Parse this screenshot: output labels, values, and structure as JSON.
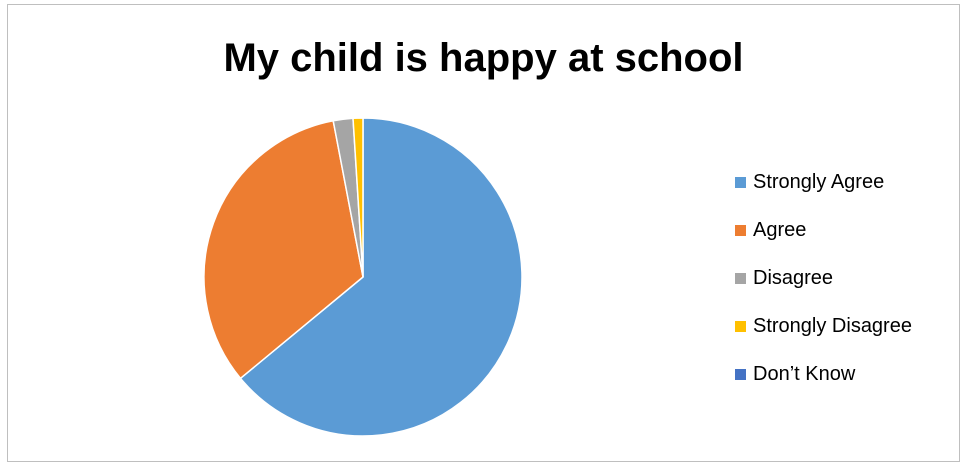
{
  "chart_data": {
    "type": "pie",
    "title": "My child is happy at school",
    "categories": [
      "Strongly Agree",
      "Agree",
      "Disagree",
      "Strongly Disagree",
      "Don’t Know"
    ],
    "values": [
      64,
      33,
      2,
      1,
      0
    ],
    "colors": [
      "#5b9bd5",
      "#ed7d31",
      "#a5a5a5",
      "#ffc000",
      "#4472c4"
    ],
    "start_angle_deg": 0,
    "direction": "clockwise",
    "legend_position": "right"
  }
}
